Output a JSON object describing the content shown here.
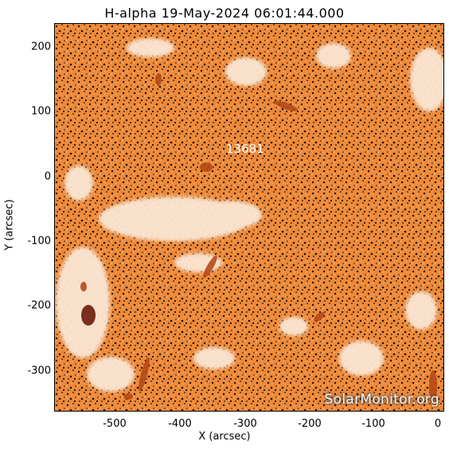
{
  "title": "H-alpha 19-May-2024 06:01:44.000",
  "region_label": "13681",
  "watermark": "SolarMonitor.org",
  "axes": {
    "xlabel": "X (arcsec)",
    "ylabel": "Y (arcsec)",
    "xticks": [
      "-500",
      "-400",
      "-300",
      "-200",
      "-100",
      "0"
    ],
    "yticks": [
      "200",
      "100",
      "0",
      "-100",
      "-200",
      "-300"
    ]
  },
  "colors": {
    "chromosphere": "#ee8a3a",
    "plage": "#fbe6d3",
    "network": "#1a1208",
    "filament": "#b54a18"
  }
}
